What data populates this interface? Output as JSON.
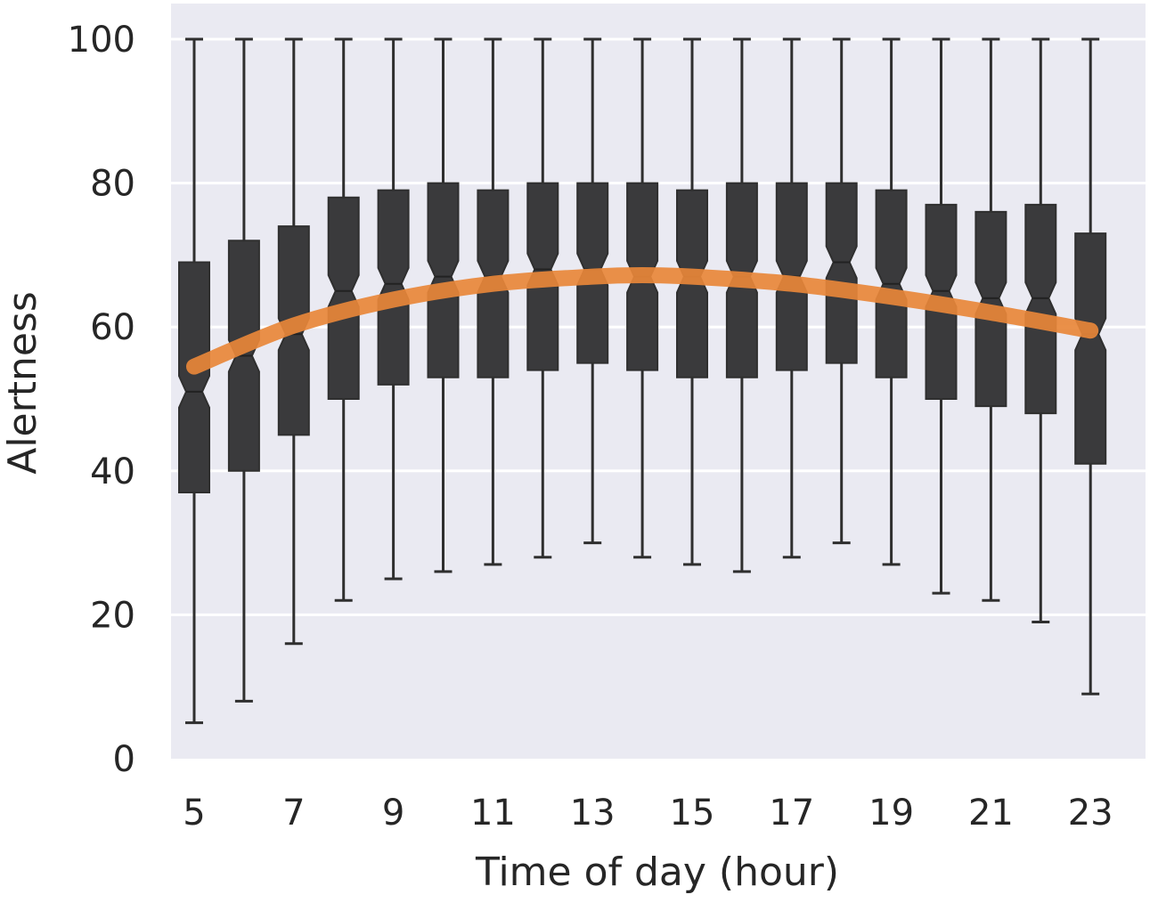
{
  "chart_data": {
    "type": "box",
    "xlabel": "Time of day (hour)",
    "ylabel": "Alertness",
    "ylim": [
      0,
      100
    ],
    "yticks": [
      0,
      20,
      40,
      60,
      80,
      100
    ],
    "xticks": [
      5,
      7,
      9,
      11,
      13,
      15,
      17,
      19,
      21,
      23
    ],
    "grid": true,
    "notched": true,
    "box_color": "#3a3a3c",
    "trend_color": "#e8873a",
    "background_color": "#eaeaf2",
    "boxes": [
      {
        "hour": 5,
        "whisker_low": 5,
        "q1": 37,
        "median": 51,
        "q3": 69,
        "whisker_high": 100
      },
      {
        "hour": 6,
        "whisker_low": 8,
        "q1": 40,
        "median": 56,
        "q3": 72,
        "whisker_high": 100
      },
      {
        "hour": 7,
        "whisker_low": 16,
        "q1": 45,
        "median": 59,
        "q3": 74,
        "whisker_high": 100
      },
      {
        "hour": 8,
        "whisker_low": 22,
        "q1": 50,
        "median": 65,
        "q3": 78,
        "whisker_high": 100
      },
      {
        "hour": 9,
        "whisker_low": 25,
        "q1": 52,
        "median": 66,
        "q3": 79,
        "whisker_high": 100
      },
      {
        "hour": 10,
        "whisker_low": 26,
        "q1": 53,
        "median": 67,
        "q3": 80,
        "whisker_high": 100
      },
      {
        "hour": 11,
        "whisker_low": 27,
        "q1": 53,
        "median": 67,
        "q3": 79,
        "whisker_high": 100
      },
      {
        "hour": 12,
        "whisker_low": 28,
        "q1": 54,
        "median": 68,
        "q3": 80,
        "whisker_high": 100
      },
      {
        "hour": 13,
        "whisker_low": 30,
        "q1": 55,
        "median": 68,
        "q3": 80,
        "whisker_high": 100
      },
      {
        "hour": 14,
        "whisker_low": 28,
        "q1": 54,
        "median": 67,
        "q3": 80,
        "whisker_high": 100
      },
      {
        "hour": 15,
        "whisker_low": 27,
        "q1": 53,
        "median": 67,
        "q3": 79,
        "whisker_high": 100
      },
      {
        "hour": 16,
        "whisker_low": 26,
        "q1": 53,
        "median": 67,
        "q3": 80,
        "whisker_high": 100
      },
      {
        "hour": 17,
        "whisker_low": 28,
        "q1": 54,
        "median": 67,
        "q3": 80,
        "whisker_high": 100
      },
      {
        "hour": 18,
        "whisker_low": 30,
        "q1": 55,
        "median": 69,
        "q3": 80,
        "whisker_high": 100
      },
      {
        "hour": 19,
        "whisker_low": 27,
        "q1": 53,
        "median": 66,
        "q3": 79,
        "whisker_high": 100
      },
      {
        "hour": 20,
        "whisker_low": 23,
        "q1": 50,
        "median": 65,
        "q3": 77,
        "whisker_high": 100
      },
      {
        "hour": 21,
        "whisker_low": 22,
        "q1": 49,
        "median": 64,
        "q3": 76,
        "whisker_high": 100
      },
      {
        "hour": 22,
        "whisker_low": 19,
        "q1": 48,
        "median": 64,
        "q3": 77,
        "whisker_high": 100
      },
      {
        "hour": 23,
        "whisker_low": 9,
        "q1": 41,
        "median": 59,
        "q3": 73,
        "whisker_high": 100
      }
    ],
    "trend": {
      "x": [
        5,
        7,
        9,
        11,
        13,
        14,
        15,
        17,
        19,
        21,
        23
      ],
      "y": [
        54.5,
        60.2,
        63.8,
        66.0,
        67.0,
        67.2,
        67.0,
        66.0,
        64.2,
        62.0,
        59.5
      ]
    }
  }
}
